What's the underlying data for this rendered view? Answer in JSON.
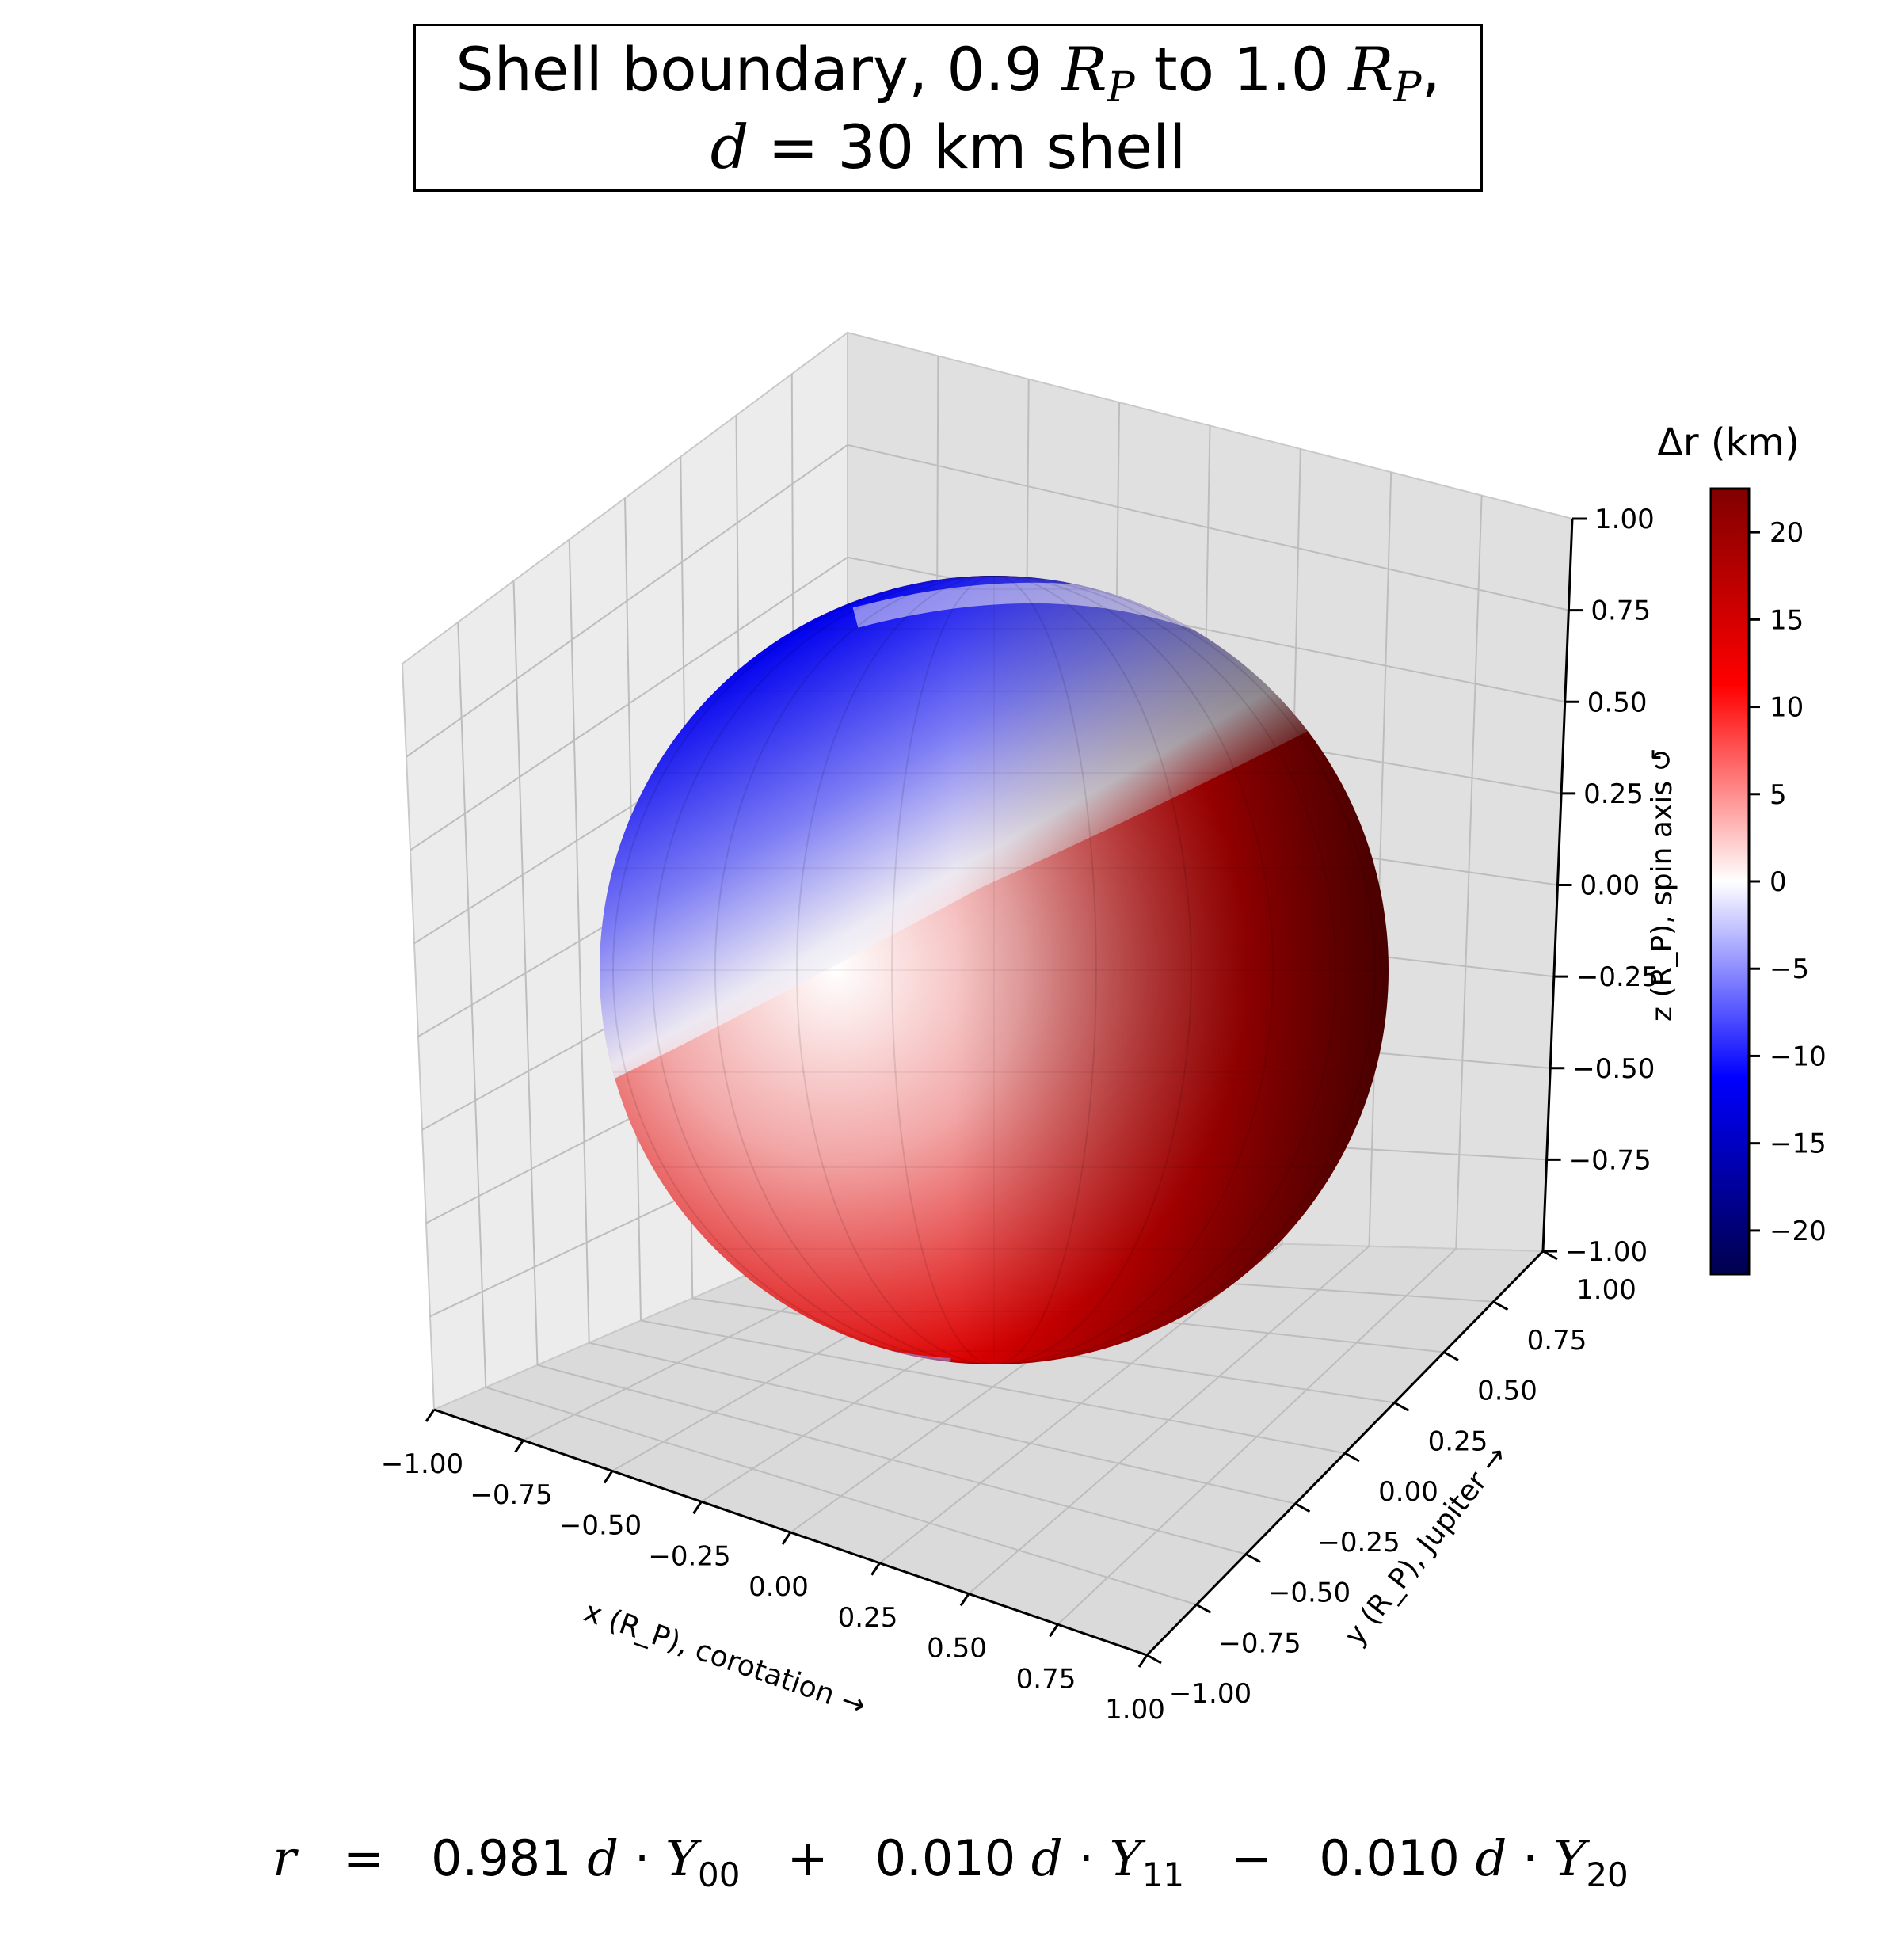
{
  "title": {
    "part1": "Shell boundary, 0.9",
    "rp_symbol": "R",
    "rp_sub": "P",
    "part2": " to 1.0",
    "part3": ",",
    "line2_var": "d",
    "line2_rest": " = 30 km shell"
  },
  "formula": {
    "r": "r",
    "eq": "   =   ",
    "c1": "0.981",
    "op1": "   +   ",
    "c2": "0.010",
    "op2": "   −   ",
    "c3": "0.010",
    "d": "d",
    "dot": " · ",
    "Y": "Y",
    "sub1": "00",
    "sub2": "11",
    "sub3": "20"
  },
  "chart_data": {
    "type": "surface3d",
    "title": "Shell boundary, 0.9 R_P to 1.0 R_P, d = 30 km shell",
    "xlabel": "x (R_P), corotation →",
    "ylabel": "y (R_P), Jupiter →",
    "zlabel": "z (R_P), spin axis ↺",
    "xlim": [
      -1.0,
      1.0
    ],
    "ylim": [
      -1.0,
      1.0
    ],
    "zlim": [
      -1.0,
      1.0
    ],
    "x_ticks": [
      "−1.00",
      "−0.75",
      "−0.50",
      "−0.25",
      "0.00",
      "0.25",
      "0.50",
      "0.75",
      "1.00"
    ],
    "y_ticks": [
      "−1.00",
      "−0.75",
      "−0.50",
      "−0.25",
      "0.00",
      "0.25",
      "0.50",
      "0.75",
      "1.00"
    ],
    "z_ticks": [
      "−1.00",
      "−0.75",
      "−0.50",
      "−0.25",
      "0.00",
      "0.25",
      "0.50",
      "0.75",
      "1.00"
    ],
    "grid": true,
    "colormap": "seismic",
    "colorbar": {
      "label": "Δr (km)",
      "min": -22.5,
      "max": 22.5,
      "ticks": [
        "−20",
        "−15",
        "−10",
        "−5",
        "0",
        "5",
        "10",
        "15",
        "20"
      ],
      "tick_values": [
        -20,
        -15,
        -10,
        -5,
        0,
        5,
        10,
        15,
        20
      ],
      "placement": "right"
    },
    "coefficients": [
      {
        "term": "Y00",
        "coefficient": 0.981
      },
      {
        "term": "Y11",
        "coefficient": 0.01
      },
      {
        "term": "Y20",
        "coefficient": -0.01
      }
    ],
    "shell_thickness_km": 30
  }
}
